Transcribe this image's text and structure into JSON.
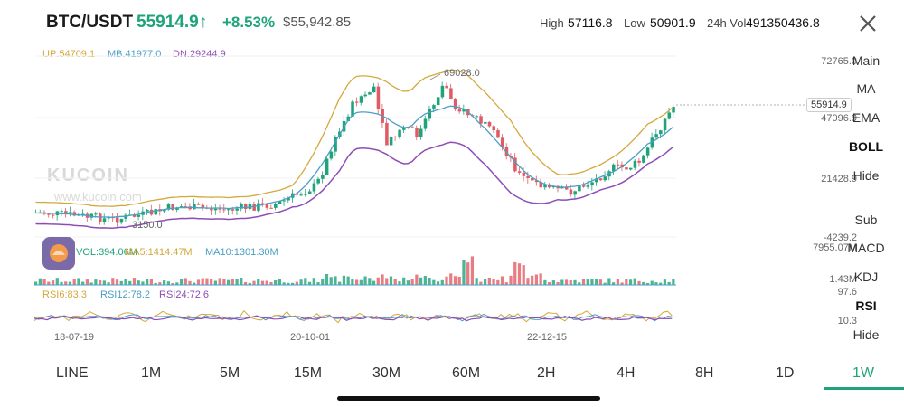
{
  "header": {
    "pair": "BTC/USDT",
    "price": "55914.9",
    "arrow": "↑",
    "change": "+8.53%",
    "fiat_price": "$55,942.85",
    "high_label": "High",
    "high_value": "57116.8",
    "low_label": "Low",
    "low_value": "50901.9",
    "vol_label": "24h Vol",
    "vol_value": "491350436.8"
  },
  "main_legend": {
    "up": "UP:54709.1",
    "mb": "MB:41977.0",
    "dn": "DN:29244.9"
  },
  "price_axis": {
    "top": "72765.0",
    "mid1": "47096.9",
    "mid2": "21428.9",
    "bottom": "-4239.2",
    "current_tag": "55914.9",
    "peak_label": "69028.0",
    "low_label": "3150.0"
  },
  "volume": {
    "vol": "VOL:394.06M",
    "ma5": "MA5:1414.47M",
    "ma10": "MA10:1301.30M",
    "axis_top": "7955.07M",
    "axis_bottom": "1.43M"
  },
  "rsi": {
    "rsi6": "RSI6:83.3",
    "rsi12": "RSI12:78.2",
    "rsi24": "RSI24:72.6",
    "axis_top": "97.6",
    "axis_bottom": "10.3"
  },
  "dates": [
    "18-07-19",
    "20-10-01",
    "22-12-15"
  ],
  "watermark": {
    "logo": "KUCOIN",
    "url": "www.kucoin.com"
  },
  "side_panel": {
    "main": "Main",
    "ma": "MA",
    "ema": "EMA",
    "boll": "BOLL",
    "hide_main": "Hide",
    "sub": "Sub",
    "macd": "MACD",
    "kdj": "KDJ",
    "rsi": "RSI",
    "hide_sub": "Hide"
  },
  "timeframes": [
    "LINE",
    "1M",
    "5M",
    "15M",
    "30M",
    "60M",
    "2H",
    "4H",
    "8H",
    "1D",
    "1W"
  ],
  "colors": {
    "green": "#1fa37a",
    "red": "#e15b64",
    "up_band": "#d4a93b",
    "mid_band": "#4a9fc4",
    "dn_band": "#8e4db5"
  },
  "icons": {
    "close": "close-icon",
    "avatar": "avatar-icon"
  }
}
